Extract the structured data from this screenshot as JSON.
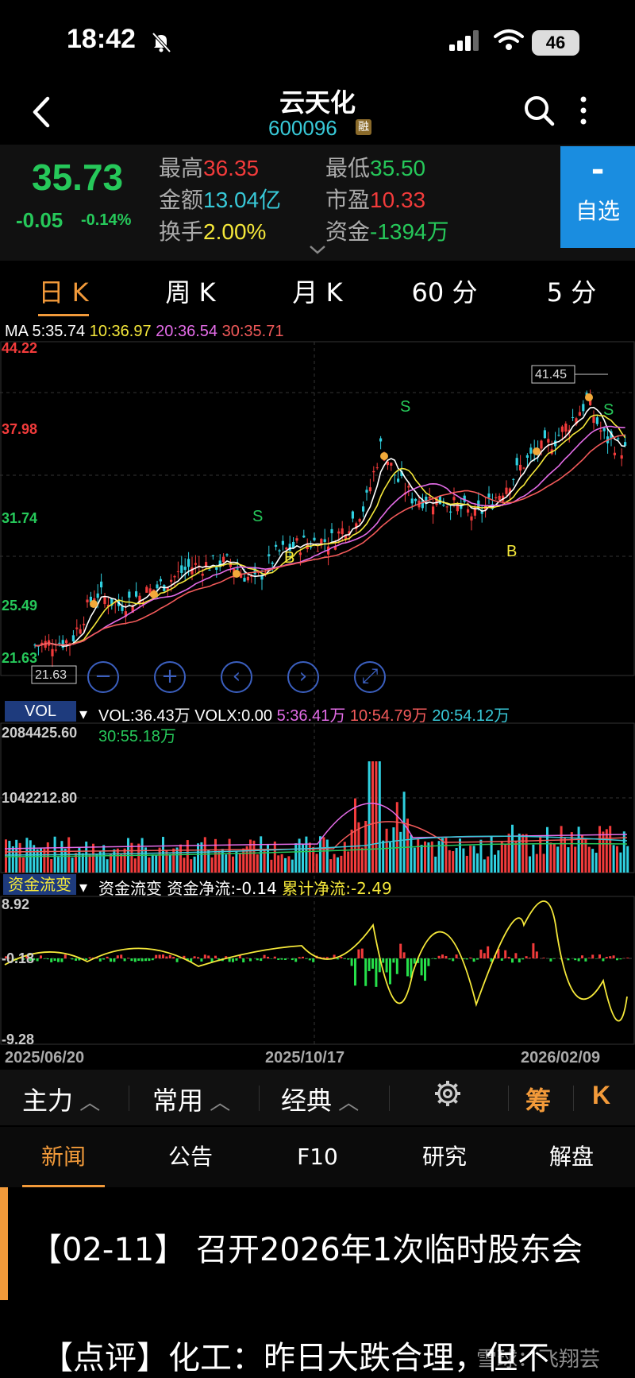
{
  "status": {
    "time": "18:42",
    "battery": "46"
  },
  "header": {
    "title": "云天化",
    "code": "600096",
    "badge": "融"
  },
  "quote": {
    "price": "35.73",
    "change": "-0.05",
    "change_pct": "-0.14%",
    "high_label": "最高",
    "high": "36.35",
    "low_label": "最低",
    "low": "35.50",
    "amount_label": "金额",
    "amount": "13.04亿",
    "pe_label": "市盈",
    "pe": "10.33",
    "turnover_label": "换手",
    "turnover": "2.00%",
    "fund_label": "资金",
    "fund": "-1394万",
    "watch_minus": "-",
    "watch_label": "自选"
  },
  "tabs": [
    "日 K",
    "周 K",
    "月 K",
    "60 分",
    "5 分"
  ],
  "ma": {
    "ma5": "MA 5:35.74",
    "ma10": "10:36.97",
    "ma20": "20:36.54",
    "ma30": "30:35.71"
  },
  "chart_data": {
    "type": "candlestick",
    "y_ticks": [
      "44.22",
      "37.98",
      "31.74",
      "25.49",
      "21.63"
    ],
    "ylim": [
      19.39,
      44.22
    ],
    "max_marker": "41.45",
    "min_marker": "21.63",
    "x_dates": [
      "2025/06/20",
      "2025/10/17",
      "2026/02/09"
    ],
    "volume": {
      "label": "VOL",
      "vol": "VOL:36.43万",
      "volx": "VOLX:0.00",
      "v5": "5:36.41万",
      "v10": "10:54.79万",
      "v20": "20:54.12万",
      "v30": "30:55.18万",
      "ticks": [
        "2084425.60",
        "1042212.80"
      ]
    },
    "fund_flow": {
      "label": "资金流变",
      "name": "资金流变",
      "net": "资金净流:-0.14",
      "cum": "累计净流:-2.49",
      "ticks": [
        "8.92",
        "-0.18",
        "-9.28"
      ]
    }
  },
  "markers": {
    "s": "S",
    "b": "B"
  },
  "toolbar": {
    "main": "主力",
    "common": "常用",
    "classic": "经典",
    "chips": "筹",
    "k": "K"
  },
  "bottom_tabs": [
    "新闻",
    "公告",
    "F10",
    "研究",
    "解盘"
  ],
  "news": {
    "item1": "【02-11】 召开2026年1次临时股东会",
    "item2": "【点评】化工：昨日大跌合理，但不",
    "watermark": "雪球：飞翔芸"
  },
  "colors": {
    "up": "#f23b3b",
    "down": "#26c85a",
    "accent": "#f29a3a",
    "cyan": "#38c9d8"
  }
}
